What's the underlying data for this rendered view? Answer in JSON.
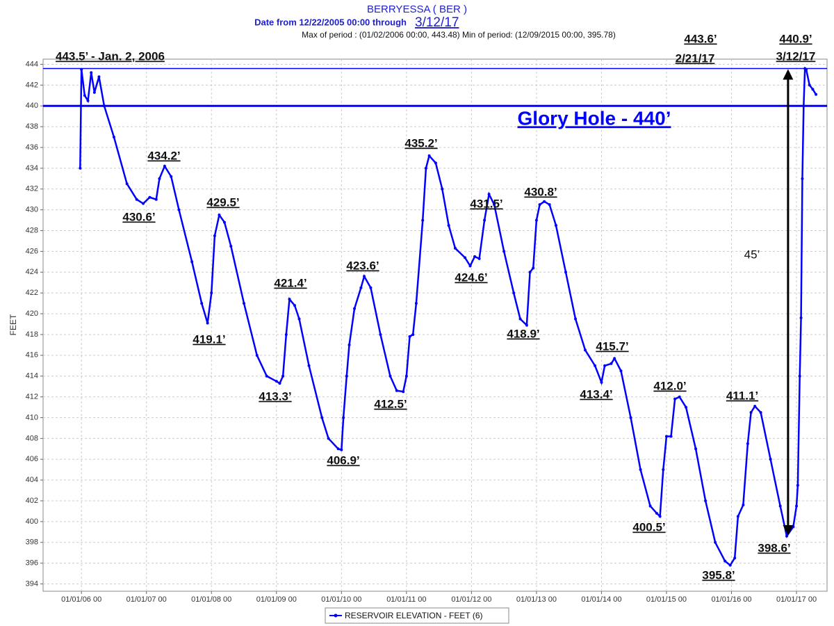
{
  "chart_data": {
    "type": "line",
    "title": "BERRYESSA ( BER )",
    "subtitle": "Date from 12/22/2005 00:00 through",
    "end_date": "3/12/17",
    "period_note": "Max of period : (01/02/2006 00:00, 443.48)  Min of period: (12/09/2015 00:00,  395.78)",
    "y_label": "FEET",
    "xlim": [
      2005.41,
      2017.47
    ],
    "ylim": [
      393.3,
      444.5
    ],
    "xticks": [
      {
        "value": 2006,
        "label": "01/01/06 00"
      },
      {
        "value": 2007,
        "label": "01/01/07 00"
      },
      {
        "value": 2008,
        "label": "01/01/08 00"
      },
      {
        "value": 2009,
        "label": "01/01/09 00"
      },
      {
        "value": 2010,
        "label": "01/01/10 00"
      },
      {
        "value": 2011,
        "label": "01/01/11 00"
      },
      {
        "value": 2012,
        "label": "01/01/12 00"
      },
      {
        "value": 2013,
        "label": "01/01/13 00"
      },
      {
        "value": 2014,
        "label": "01/01/14 00"
      },
      {
        "value": 2015,
        "label": "01/01/15 00"
      },
      {
        "value": 2016,
        "label": "01/01/16 00"
      },
      {
        "value": 2017,
        "label": "01/01/17 00"
      }
    ],
    "yticks": [
      394,
      396,
      398,
      400,
      402,
      404,
      406,
      408,
      410,
      412,
      414,
      416,
      418,
      420,
      422,
      424,
      426,
      428,
      430,
      432,
      434,
      436,
      438,
      440,
      442,
      444
    ],
    "grid": true,
    "hlines": [
      440,
      443.6
    ],
    "arrow": {
      "x": 2016.87,
      "from": 398.6,
      "to": 443.6
    },
    "series": [
      {
        "name": "RESERVOIR ELEVATION - FEET (6)",
        "color": "#0000ff",
        "x": [
          2005.98,
          2006.0,
          2006.05,
          2006.1,
          2006.15,
          2006.2,
          2006.27,
          2006.35,
          2006.5,
          2006.7,
          2006.85,
          2006.95,
          2007.05,
          2007.15,
          2007.2,
          2007.28,
          2007.38,
          2007.5,
          2007.7,
          2007.85,
          2007.94,
          2008.0,
          2008.05,
          2008.12,
          2008.2,
          2008.3,
          2008.5,
          2008.7,
          2008.85,
          2009.0,
          2009.05,
          2009.1,
          2009.15,
          2009.2,
          2009.28,
          2009.35,
          2009.5,
          2009.7,
          2009.8,
          2009.95,
          2010.0,
          2010.03,
          2010.08,
          2010.12,
          2010.2,
          2010.3,
          2010.35,
          2010.45,
          2010.6,
          2010.75,
          2010.85,
          2010.95,
          2011.0,
          2011.05,
          2011.1,
          2011.15,
          2011.25,
          2011.3,
          2011.35,
          2011.45,
          2011.55,
          2011.65,
          2011.75,
          2011.9,
          2011.98,
          2012.05,
          2012.12,
          2012.2,
          2012.27,
          2012.35,
          2012.5,
          2012.65,
          2012.75,
          2012.85,
          2012.9,
          2012.95,
          2013.0,
          2013.05,
          2013.12,
          2013.2,
          2013.3,
          2013.45,
          2013.6,
          2013.75,
          2013.9,
          2014.0,
          2014.05,
          2014.15,
          2014.2,
          2014.3,
          2014.45,
          2014.6,
          2014.75,
          2014.85,
          2014.9,
          2014.95,
          2015.0,
          2015.07,
          2015.13,
          2015.2,
          2015.3,
          2015.45,
          2015.6,
          2015.75,
          2015.9,
          2015.98,
          2016.05,
          2016.1,
          2016.18,
          2016.25,
          2016.3,
          2016.36,
          2016.45,
          2016.6,
          2016.75,
          2016.85,
          2016.95,
          2017.0,
          2017.02,
          2017.05,
          2017.07,
          2017.09,
          2017.11,
          2017.13,
          2017.15,
          2017.2,
          2017.25,
          2017.3
        ],
        "values": [
          434.0,
          443.5,
          441.0,
          440.5,
          443.2,
          441.3,
          442.8,
          440.0,
          437.0,
          432.5,
          431.0,
          430.6,
          431.2,
          431.0,
          433.0,
          434.2,
          433.2,
          430.0,
          425.0,
          421.0,
          419.1,
          422.0,
          427.5,
          429.5,
          428.8,
          426.5,
          421.0,
          416.0,
          414.0,
          413.5,
          413.3,
          414.0,
          418.0,
          421.4,
          420.8,
          419.5,
          415.0,
          410.0,
          408.0,
          407.0,
          406.9,
          410.0,
          414.0,
          417.0,
          420.5,
          422.5,
          423.6,
          422.5,
          418.0,
          414.0,
          412.6,
          412.5,
          414.0,
          417.8,
          418.0,
          421.0,
          429.0,
          434.0,
          435.2,
          434.5,
          432.0,
          428.5,
          426.3,
          425.4,
          424.6,
          425.5,
          425.3,
          429.0,
          431.5,
          430.5,
          426.0,
          422.0,
          419.5,
          418.9,
          424.0,
          424.4,
          429.0,
          430.5,
          430.8,
          430.5,
          428.5,
          424.0,
          419.5,
          416.5,
          415.0,
          413.4,
          415.0,
          415.2,
          415.7,
          414.5,
          410.0,
          405.0,
          401.5,
          400.8,
          400.5,
          405.0,
          408.2,
          408.2,
          411.8,
          412.0,
          411.0,
          407.0,
          402.0,
          398.0,
          396.2,
          395.8,
          396.5,
          400.5,
          401.6,
          407.5,
          410.5,
          411.1,
          410.5,
          406.0,
          401.5,
          398.6,
          399.5,
          401.5,
          403.5,
          414.0,
          419.6,
          433.0,
          440.0,
          443.6,
          443.5,
          442.0,
          441.6,
          441.1
        ]
      }
    ],
    "annotations": [
      "443.5’ - Jan. 2, 2006",
      "443.6’",
      "2/21/17",
      "440.9’",
      "3/12/17",
      "Glory Hole - 440’",
      "434.2’",
      "430.6’",
      "429.5’",
      "419.1’",
      "421.4’",
      "413.3’",
      "423.6’",
      "406.9’",
      "435.2’",
      "412.5’",
      "431.5’",
      "424.6’",
      "430.8’",
      "418.9’",
      "45’",
      "415.7’",
      "413.4’",
      "412.0’",
      "400.5’",
      "411.1’",
      "395.8’",
      "398.6’"
    ]
  }
}
